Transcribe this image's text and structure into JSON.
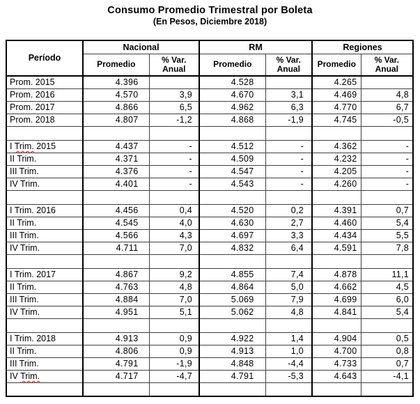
{
  "title": "Consumo Promedio Trimestral por Boleta",
  "subtitle": "(En Pesos, Diciembre 2018)",
  "table": {
    "period_header": "Período",
    "groups": [
      {
        "label": "Nacional"
      },
      {
        "label": "RM"
      },
      {
        "label": "Regiones"
      }
    ],
    "sub_headers": {
      "promedio": "Promedio",
      "var_line1": "% Var.",
      "var_line2": "Anual"
    },
    "columns": [
      "Período",
      "Nacional Promedio",
      "Nacional % Var. Anual",
      "RM Promedio",
      "RM % Var. Anual",
      "Regiones Promedio",
      "Regiones % Var. Anual"
    ],
    "rows": [
      {
        "periodo": [
          {
            "text": "Prom. 2015",
            "error": false
          }
        ],
        "values": [
          "4.396",
          "",
          "4.528",
          "",
          "4.265",
          ""
        ]
      },
      {
        "periodo": [
          {
            "text": "Prom. 2016",
            "error": false
          }
        ],
        "values": [
          "4.570",
          "3,9",
          "4.670",
          "3,1",
          "4.469",
          "4,8"
        ]
      },
      {
        "periodo": [
          {
            "text": "Prom. 2017",
            "error": false
          }
        ],
        "values": [
          "4.866",
          "6,5",
          "4.962",
          "6,3",
          "4.770",
          "6,7"
        ]
      },
      {
        "periodo": [
          {
            "text": "Prom. 2018",
            "error": false
          }
        ],
        "values": [
          "4.807",
          "-1,2",
          "4.868",
          "-1,9",
          "4.745",
          "-0,5"
        ]
      },
      {
        "spacer": true
      },
      {
        "periodo": [
          {
            "text": "I ",
            "error": false
          },
          {
            "text": "Trim.",
            "error": true
          },
          {
            "text": " 2015",
            "error": false
          }
        ],
        "values": [
          "4.437",
          "-",
          "4.512",
          "-",
          "4.362",
          "-"
        ]
      },
      {
        "periodo": [
          {
            "text": "II Trim.",
            "error": false
          }
        ],
        "values": [
          "4.371",
          "-",
          "4.509",
          "-",
          "4.232",
          "-"
        ]
      },
      {
        "periodo": [
          {
            "text": "III Trim.",
            "error": false
          }
        ],
        "values": [
          "4.376",
          "-",
          "4.547",
          "-",
          "4.205",
          "-"
        ]
      },
      {
        "periodo": [
          {
            "text": "IV Trim.",
            "error": false
          }
        ],
        "values": [
          "4.401",
          "-",
          "4.543",
          "-",
          "4.260",
          "-"
        ]
      },
      {
        "spacer": true
      },
      {
        "periodo": [
          {
            "text": "I Trim. 2016",
            "error": false
          }
        ],
        "values": [
          "4.456",
          "0,4",
          "4.520",
          "0,2",
          "4.391",
          "0,7"
        ]
      },
      {
        "periodo": [
          {
            "text": "II Trim.",
            "error": false
          }
        ],
        "values": [
          "4.545",
          "4,0",
          "4.630",
          "2,7",
          "4.460",
          "5,4"
        ]
      },
      {
        "periodo": [
          {
            "text": "III Trim.",
            "error": false
          }
        ],
        "values": [
          "4.566",
          "4,3",
          "4.697",
          "3,3",
          "4.434",
          "5,5"
        ]
      },
      {
        "periodo": [
          {
            "text": "IV Trim.",
            "error": false
          }
        ],
        "values": [
          "4.711",
          "7,0",
          "4.832",
          "6,4",
          "4.591",
          "7,8"
        ]
      },
      {
        "spacer": true
      },
      {
        "periodo": [
          {
            "text": "I Trim. 2017",
            "error": false
          }
        ],
        "values": [
          "4.867",
          "9,2",
          "4.855",
          "7,4",
          "4.878",
          "11,1"
        ]
      },
      {
        "periodo": [
          {
            "text": "II Trim.",
            "error": false
          }
        ],
        "values": [
          "4.763",
          "4,8",
          "4.864",
          "5,0",
          "4.662",
          "4,5"
        ]
      },
      {
        "periodo": [
          {
            "text": "III Trim.",
            "error": false
          }
        ],
        "values": [
          "4.884",
          "7,0",
          "5.069",
          "7,9",
          "4.699",
          "6,0"
        ]
      },
      {
        "periodo": [
          {
            "text": "IV Trim.",
            "error": false
          }
        ],
        "values": [
          "4.951",
          "5,1",
          "5.062",
          "4,8",
          "4.841",
          "5,4"
        ]
      },
      {
        "spacer": true
      },
      {
        "periodo": [
          {
            "text": "I Trim. 2018",
            "error": false
          }
        ],
        "values": [
          "4.913",
          "0,9",
          "4.922",
          "1,4",
          "4.904",
          "0,5"
        ]
      },
      {
        "periodo": [
          {
            "text": "II Trim.",
            "error": false
          }
        ],
        "values": [
          "4.806",
          "0,9",
          "4.913",
          "1,0",
          "4.700",
          "0,8"
        ]
      },
      {
        "periodo": [
          {
            "text": "III Trim.",
            "error": false
          }
        ],
        "values": [
          "4.791",
          "-1,9",
          "4.848",
          "-4,4",
          "4.733",
          "0,7"
        ]
      },
      {
        "periodo": [
          {
            "text": "IV ",
            "error": false
          },
          {
            "text": "Trim.",
            "error": true
          }
        ],
        "values": [
          "4.717",
          "-4,7",
          "4.791",
          "-5,3",
          "4.643",
          "-4,1"
        ]
      },
      {
        "spacer": true
      }
    ]
  },
  "colors": {
    "thick_border": "#000000",
    "thin_border": "#404040",
    "spellcheck_underline": "#e8000d",
    "background": "#ffffff",
    "text": "#000000"
  }
}
